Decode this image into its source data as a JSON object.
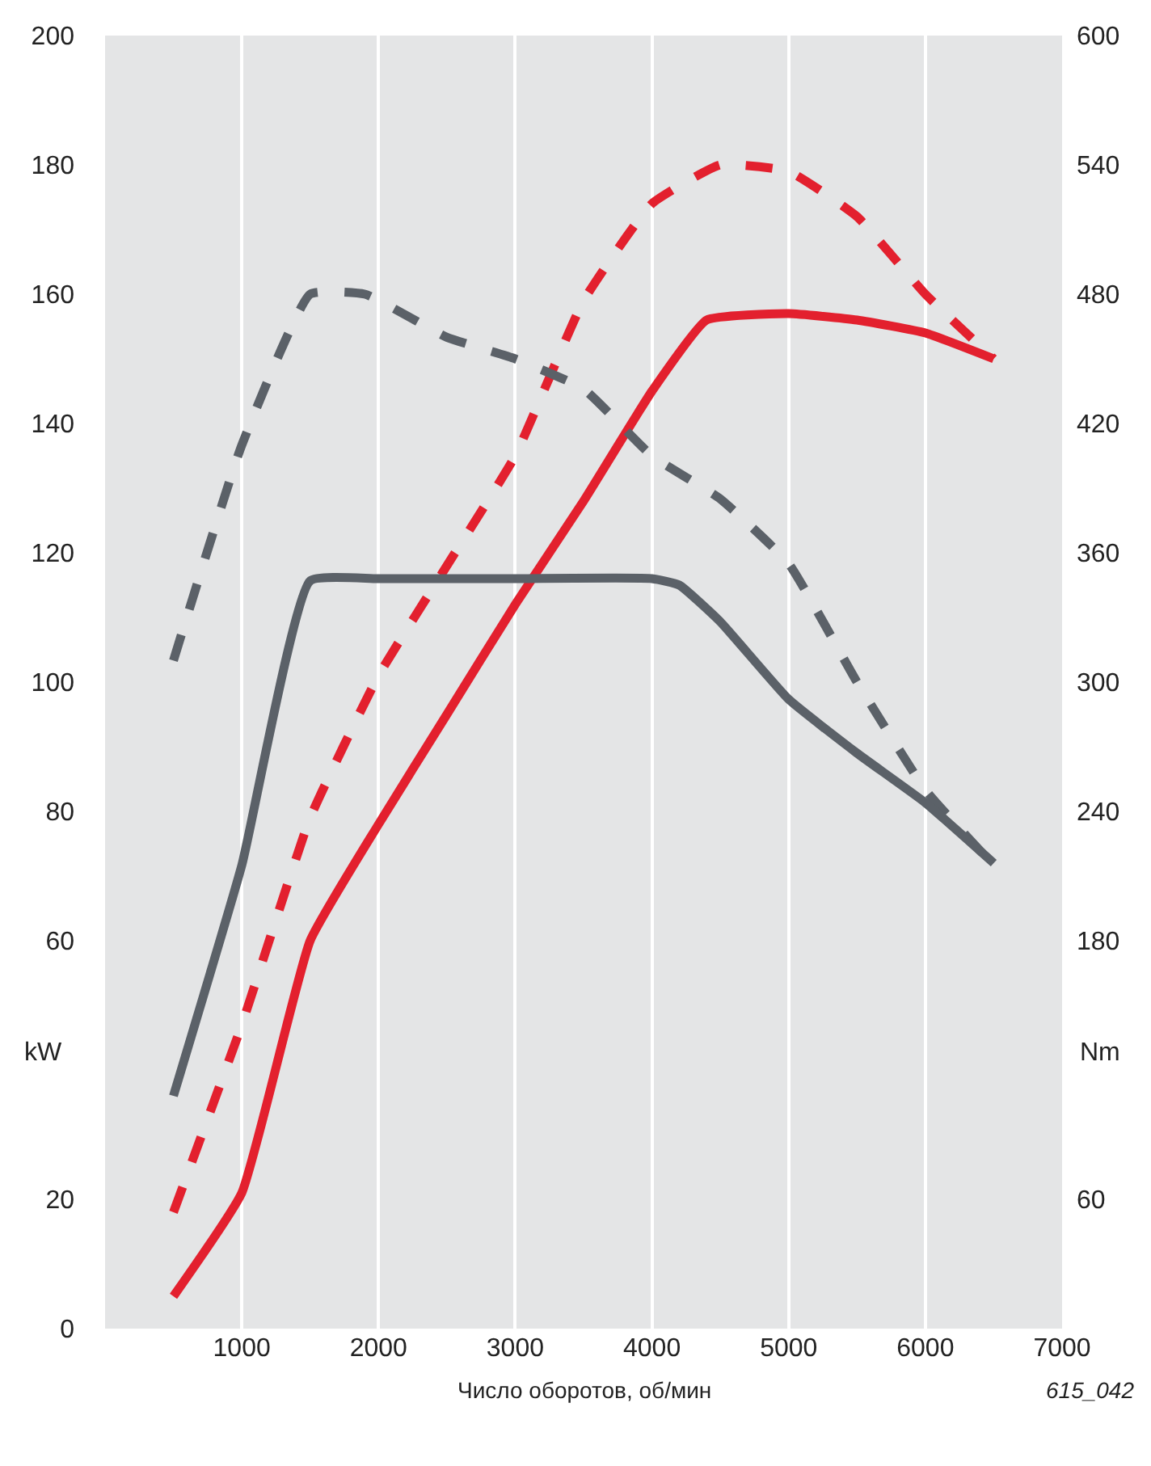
{
  "chart_data": {
    "type": "line",
    "xlabel": "Число оборотов, об/мин",
    "ylabel": "kW",
    "y2label": "Nm",
    "annotations": [
      "615_042"
    ],
    "xlim": [
      0,
      7000
    ],
    "xticks": [
      1000,
      2000,
      3000,
      4000,
      5000,
      6000,
      7000
    ],
    "ylim": [
      0,
      200
    ],
    "yticks": [
      0,
      20,
      60,
      80,
      100,
      120,
      140,
      160,
      180,
      200
    ],
    "y2lim": [
      0,
      600
    ],
    "y2ticks": [
      60,
      180,
      240,
      300,
      360,
      420,
      480,
      540,
      600
    ],
    "grid": "x",
    "marker": "none",
    "series": [
      {
        "color": "#5b6168",
        "axis": "y2",
        "line_style": "dashed",
        "x": [
          500,
          1000,
          1500,
          1900,
          2500,
          3000,
          3500,
          4000,
          4500,
          5000,
          5500,
          6000,
          6500
        ],
        "values": [
          310,
          410,
          480,
          480,
          460,
          450,
          436,
          405,
          385,
          355,
          300,
          250,
          215
        ]
      },
      {
        "color": "#5b6168",
        "axis": "y2",
        "line_style": "solid",
        "x": [
          500,
          1000,
          1500,
          2000,
          3000,
          4000,
          4200,
          4500,
          5000,
          5500,
          6000,
          6500
        ],
        "values": [
          108,
          215,
          347,
          348,
          348,
          348,
          345,
          328,
          292,
          267,
          244,
          216
        ]
      },
      {
        "color": "#e3202e",
        "line_style": "dashed",
        "x": [
          500,
          1000,
          1500,
          2000,
          2500,
          3000,
          3500,
          4000,
          4500,
          5000,
          5500,
          6000,
          6500
        ],
        "values": [
          18,
          47,
          79,
          101,
          118,
          135,
          159,
          174,
          180,
          179,
          172,
          160,
          150
        ]
      },
      {
        "color": "#e3202e",
        "line_style": "solid",
        "x": [
          500,
          1000,
          1500,
          2000,
          2500,
          3000,
          3500,
          4000,
          4400,
          5000,
          5500,
          6000,
          6500
        ],
        "values": [
          5,
          21,
          60,
          78,
          95,
          112,
          128,
          145,
          156,
          157,
          156,
          154,
          150
        ]
      }
    ]
  }
}
